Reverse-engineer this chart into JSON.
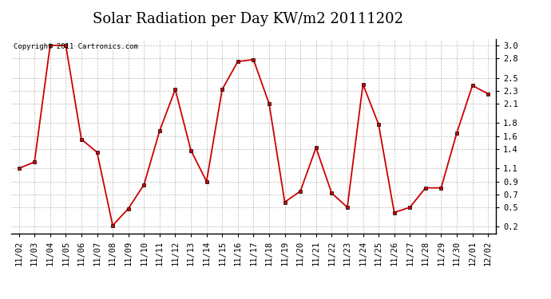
{
  "title": "Solar Radiation per Day KW/m2 20111202",
  "copyright": "Copyright 2011 Cartronics.com",
  "dates": [
    "11/02",
    "11/03",
    "11/04",
    "11/05",
    "11/06",
    "11/07",
    "11/08",
    "11/09",
    "11/10",
    "11/11",
    "11/12",
    "11/13",
    "11/14",
    "11/15",
    "11/16",
    "11/17",
    "11/18",
    "11/19",
    "11/20",
    "11/21",
    "11/22",
    "11/23",
    "11/24",
    "11/25",
    "11/26",
    "11/27",
    "11/28",
    "11/29",
    "11/30",
    "12/01",
    "12/02"
  ],
  "values": [
    1.1,
    1.2,
    3.0,
    3.0,
    1.55,
    1.35,
    0.22,
    0.48,
    0.85,
    1.68,
    2.32,
    1.38,
    0.9,
    2.32,
    2.75,
    2.78,
    2.1,
    0.58,
    0.75,
    1.42,
    0.72,
    0.5,
    2.4,
    1.78,
    0.42,
    0.5,
    0.8,
    0.8,
    1.65,
    2.38,
    2.25
  ],
  "line_color": "#cc0000",
  "marker": "s",
  "markersize": 2.5,
  "linewidth": 1.3,
  "ylim": [
    0.1,
    3.1
  ],
  "yticks": [
    0.2,
    0.5,
    0.7,
    0.9,
    1.1,
    1.4,
    1.6,
    1.8,
    2.1,
    2.3,
    2.5,
    2.8,
    3.0
  ],
  "background_color": "#ffffff",
  "grid_color": "#bbbbbb",
  "title_fontsize": 13,
  "tick_fontsize": 7.5,
  "copyright_fontsize": 6.5
}
